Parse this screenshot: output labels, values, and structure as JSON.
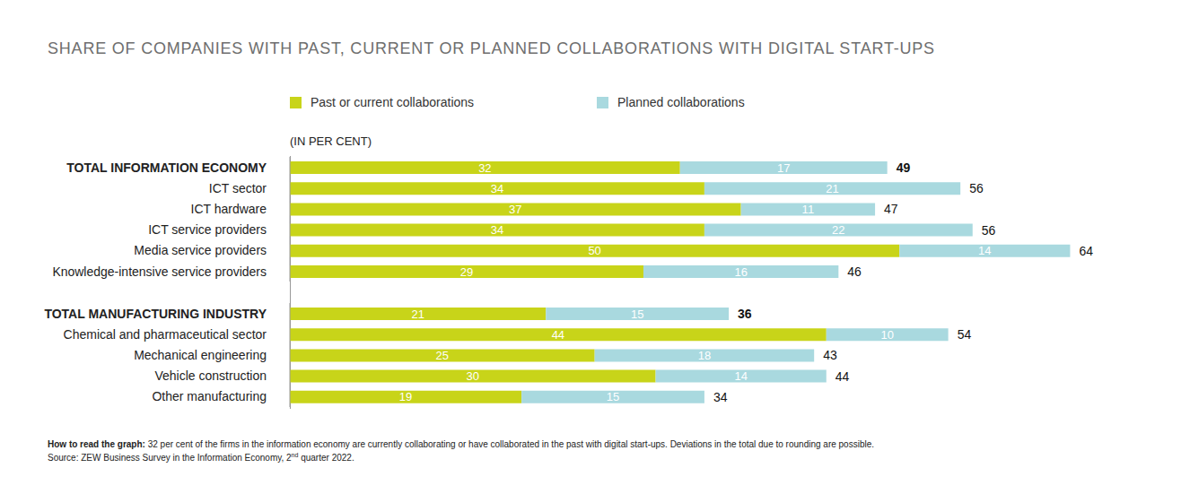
{
  "title": "SHARE OF COMPANIES WITH PAST, CURRENT OR PLANNED COLLABORATIONS WITH DIGITAL START-UPS",
  "unit_label": "(IN PER CENT)",
  "footnote": {
    "lead": "How to read the graph:",
    "text": " 32 per cent of the firms in the information economy are currently collaborating or have collaborated in the past with digital start-ups. Deviations in the total due to rounding are possible."
  },
  "source": {
    "before": "Source: ZEW Business Survey in the Information Economy, 2",
    "superscript": "nd",
    "after": " quarter 2022."
  },
  "chart_data": [
    {
      "type": "bar",
      "orientation": "horizontal",
      "stacked": true,
      "data_labels": true,
      "tick_labels": "y",
      "legend": "top",
      "xlim": [
        0,
        70
      ],
      "categories": [
        "TOTAL INFORMATION ECONOMY",
        "ICT sector",
        "ICT hardware",
        "ICT service providers",
        "Media service providers",
        "Knowledge-intensive service providers"
      ],
      "series": [
        {
          "name": "Past or current collaborations",
          "color": "#c8d419",
          "values": [
            32,
            34,
            37,
            34,
            50,
            29
          ]
        },
        {
          "name": "Planned collaborations",
          "color": "#a9d9df",
          "values": [
            17,
            21,
            11,
            22,
            14,
            16
          ]
        }
      ],
      "totals": [
        49,
        56,
        47,
        56,
        64,
        46
      ]
    },
    {
      "type": "bar",
      "orientation": "horizontal",
      "stacked": true,
      "data_labels": true,
      "tick_labels": "y",
      "xlim": [
        0,
        70
      ],
      "categories": [
        "TOTAL MANUFACTURING INDUSTRY",
        "Chemical and pharmaceutical sector",
        "Mechanical engineering",
        "Vehicle construction",
        "Other manufacturing"
      ],
      "series": [
        {
          "name": "Past or current collaborations",
          "color": "#c8d419",
          "values": [
            21,
            44,
            25,
            30,
            19
          ]
        },
        {
          "name": "Planned collaborations",
          "color": "#a9d9df",
          "values": [
            15,
            10,
            18,
            14,
            15
          ]
        }
      ],
      "totals": [
        36,
        54,
        43,
        44,
        34
      ]
    }
  ]
}
